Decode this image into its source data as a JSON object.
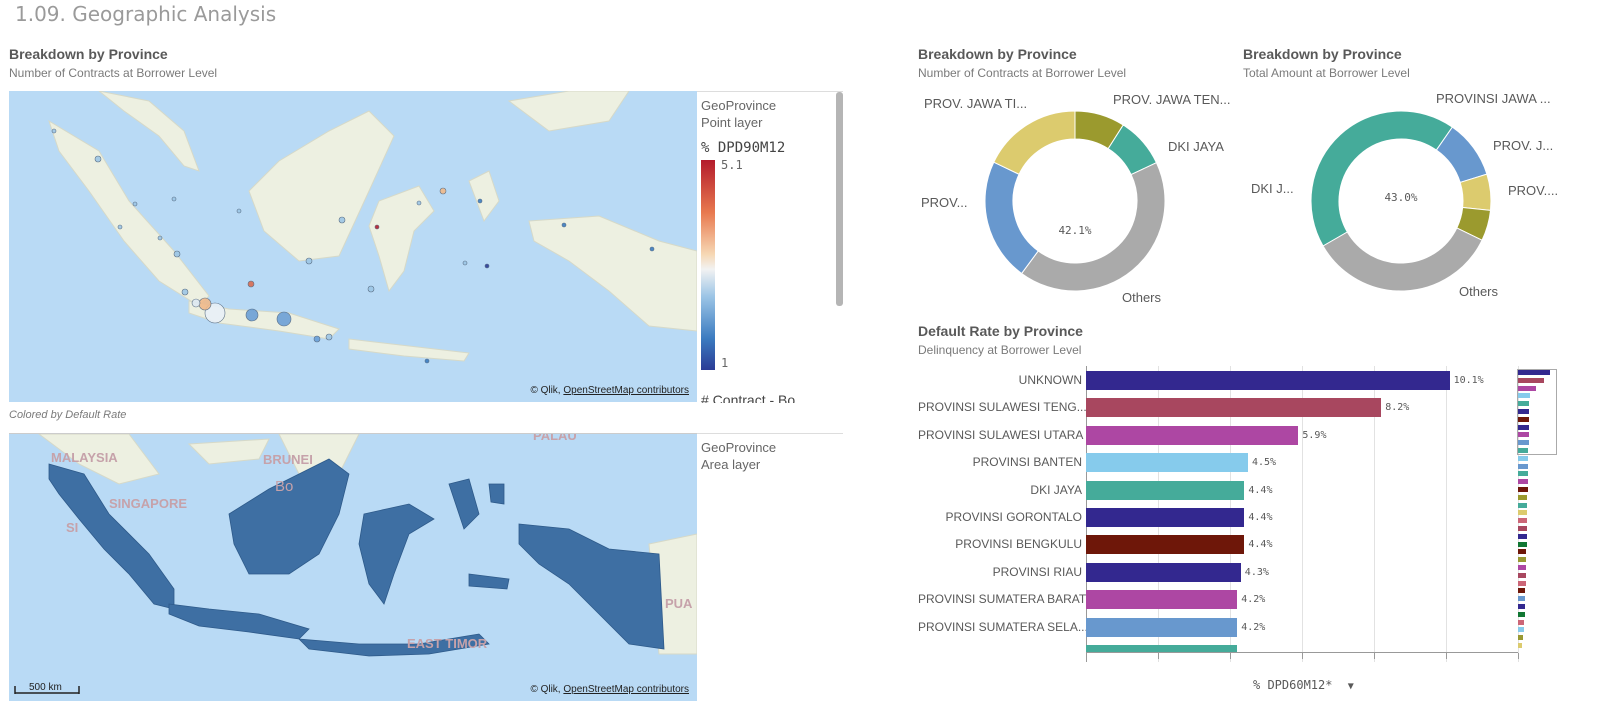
{
  "sheet": {
    "title": "1.09. Geographic Analysis"
  },
  "map_panel": {
    "title": "Breakdown by Province",
    "subtitle": "Number of Contracts at Borrower Level",
    "caption": "Colored by Default Rate",
    "top_legend": {
      "layer_name": "GeoProvince",
      "layer_type": "Point layer",
      "measure": "% DPD90M12",
      "max": "5.1",
      "min": "1",
      "size_measure": "# Contract - Bo"
    },
    "bottom_legend": {
      "layer_name": "GeoProvince",
      "layer_type": "Area layer"
    },
    "attribution_prefix": "© Qlik, ",
    "attribution_link": "OpenStreetMap contributors",
    "scale": "500 km",
    "place_labels": [
      "MALAYSIA",
      "BRUNEI",
      "PALAU",
      "SINGAPORE",
      "EAST TIMOR",
      "PUA",
      "Bo",
      "SI"
    ]
  },
  "donut1": {
    "title": "Breakdown by Province",
    "subtitle": "Number of Contracts at Borrower Level",
    "center": "42.1%",
    "labels": [
      "PROV. JAWA TI...",
      "PROV. JAWA TEN...",
      "DKI JAYA",
      "PROV...",
      "Others"
    ]
  },
  "donut2": {
    "title": "Breakdown by Province",
    "subtitle": "Total Amount at Borrower Level",
    "center": "43.0%",
    "labels": [
      "PROVINSI JAWA ...",
      "PROV. J...",
      "DKI J...",
      "PROV....",
      "Others"
    ]
  },
  "bar_panel": {
    "title": "Default Rate by Province",
    "subtitle": "Delinquency at Borrower Level",
    "measure_selector": "% DPD60M12*"
  },
  "colors": {
    "donut1": [
      "#9b9a2e",
      "#45ab9a",
      "#aaaaaa",
      "#6898ce",
      "#dccb6e"
    ],
    "donut2": [
      "#45ab9a",
      "#6898ce",
      "#dccb6e",
      "#9b9a2e",
      "#aaaaaa"
    ]
  },
  "chart_data": [
    {
      "type": "pie",
      "title": "Breakdown by Province",
      "subtitle": "Number of Contracts at Borrower Level",
      "center_label": "42.1%",
      "slices": [
        {
          "label": "PROV. JAWA TEN...",
          "value": 9
        },
        {
          "label": "DKI JAYA",
          "value": 9
        },
        {
          "label": "Others",
          "value": 42.1
        },
        {
          "label": "PROV...",
          "value": 22
        },
        {
          "label": "PROV. JAWA TI...",
          "value": 17.9
        }
      ]
    },
    {
      "type": "pie",
      "title": "Breakdown by Province",
      "subtitle": "Total Amount at Borrower Level",
      "center_label": "43.0%",
      "slices": [
        {
          "label": "DKI J...",
          "value": 43.0
        },
        {
          "label": "PROVINSI JAWA ...",
          "value": 10.5
        },
        {
          "label": "PROV. J...",
          "value": 6.5
        },
        {
          "label": "PROV....",
          "value": 5.5
        },
        {
          "label": "Others",
          "value": 34.5
        }
      ]
    },
    {
      "type": "bar",
      "orientation": "horizontal",
      "title": "Default Rate by Province",
      "subtitle": "Delinquency at Borrower Level",
      "categories": [
        "UNKNOWN",
        "PROVINSI SULAWESI TENG...",
        "PROVINSI SULAWESI UTARA",
        "PROVINSI BANTEN",
        "DKI JAYA",
        "PROVINSI GORONTALO",
        "PROVINSI BENGKULU",
        "PROVINSI RIAU",
        "PROVINSI SUMATERA BARAT",
        "PROVINSI SUMATERA SELA..."
      ],
      "values": [
        10.1,
        8.2,
        5.9,
        4.5,
        4.4,
        4.4,
        4.4,
        4.3,
        4.2,
        4.2
      ],
      "value_labels": [
        "10.1%",
        "8.2%",
        "5.9%",
        "4.5%",
        "4.4%",
        "4.4%",
        "4.4%",
        "4.3%",
        "4.2%",
        "4.2%"
      ],
      "bar_colors": [
        "#33288f",
        "#a8475f",
        "#ad47a3",
        "#86cbec",
        "#45ab9a",
        "#33288f",
        "#6e1709",
        "#33288f",
        "#ad47a3",
        "#6898ce"
      ],
      "xlim": [
        0,
        12
      ],
      "xlabel": "% DPD60M12*",
      "grid": true
    }
  ]
}
